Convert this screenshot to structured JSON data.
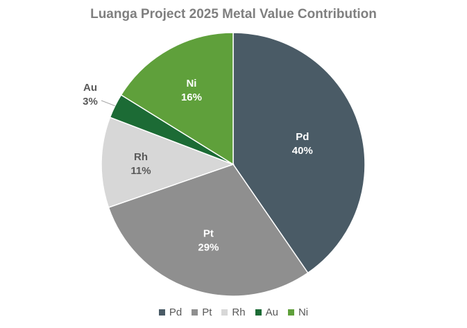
{
  "chart_data": {
    "type": "pie",
    "title": "Luanga Project 2025 Metal Value Contribution",
    "categories": [
      "Pd",
      "Pt",
      "Rh",
      "Au",
      "Ni"
    ],
    "values": [
      40,
      29,
      11,
      3,
      16
    ],
    "value_labels": [
      "40%",
      "29%",
      "11%",
      "3%",
      "16%"
    ],
    "colors": [
      "#4a5b66",
      "#8f8f8f",
      "#d7d7d7",
      "#1c6b35",
      "#5fa03b"
    ],
    "label_colors": [
      "#ffffff",
      "#ffffff",
      "#595959",
      "#595959",
      "#ffffff"
    ],
    "legend_position": "bottom",
    "start_angle": "12 o'clock",
    "direction": "clockwise"
  }
}
